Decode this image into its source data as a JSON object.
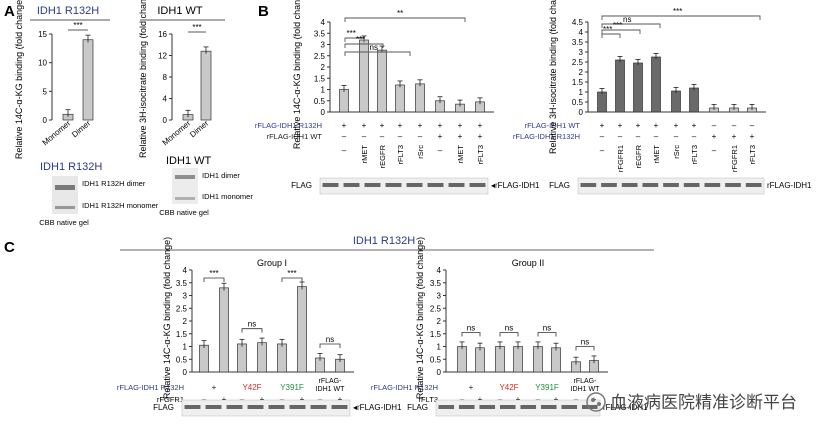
{
  "panelA": {
    "letter": "A",
    "left": {
      "title": "IDH1 R132H",
      "ylabel": "Relative 14C-α-KG binding (fold change)",
      "ticks": [
        "0",
        "5",
        "10",
        "15"
      ],
      "categories": [
        "Monomer",
        "Dimer"
      ],
      "values": [
        1.0,
        14.0
      ],
      "sig": "***",
      "gel_title": "IDH1 R132H",
      "gel_labels": [
        "IDH1 R132H dimer",
        "IDH1 R132H monomer"
      ],
      "gel_caption": "CBB native gel"
    },
    "right": {
      "title": "IDH1 WT",
      "ylabel": "Relative 3H-isocitrate binding (fold change)",
      "ticks": [
        "0",
        "4",
        "8",
        "12",
        "16"
      ],
      "categories": [
        "Monomer",
        "Dimer"
      ],
      "values": [
        1.0,
        12.8
      ],
      "sig": "***",
      "gel_title": "IDH1 WT",
      "gel_labels": [
        "IDH1 dimer",
        "IDH1 monomer"
      ],
      "gel_caption": "CBB native gel"
    }
  },
  "panelB": {
    "letter": "B",
    "left": {
      "ylabel": "Relative 14C-α-KG binding (fold change)",
      "ticks": [
        "0",
        "0.5",
        "1",
        "1.5",
        "2",
        "2.5",
        "3",
        "3.5",
        "4"
      ],
      "row1_label": "rFLAG-IDH1 R132H",
      "row2_label": "rFLAG-IDH1 WT",
      "row1_signs": [
        "+",
        "+",
        "+",
        "+",
        "+",
        "+",
        "+",
        "+"
      ],
      "row2_signs": [
        "–",
        "–",
        "–",
        "–",
        "–",
        "+",
        "+",
        "+"
      ],
      "kinases": [
        "–",
        "rMET",
        "rEGFR",
        "rFLT3",
        "rSrc",
        "–",
        "rMET",
        "rFLT3"
      ],
      "values": [
        1.0,
        3.2,
        2.75,
        1.2,
        1.25,
        0.5,
        0.35,
        0.45
      ],
      "sig": [
        "***",
        "***",
        "ns",
        "**"
      ],
      "blot_label": "FLAG",
      "blot_target": "◂rFLAG-IDH1"
    },
    "right": {
      "ylabel": "Relative 3H-isocitrate binding (fold change)",
      "ticks": [
        "0",
        "0.5",
        "1",
        "1.5",
        "2",
        "2.5",
        "3",
        "3.5",
        "4",
        "4.5"
      ],
      "row1_label": "rFLAG-IDH1 WT",
      "row2_label": "rFLAG-IDH1 R132H",
      "row1_signs": [
        "+",
        "+",
        "+",
        "+",
        "+",
        "+",
        "–",
        "–",
        "–"
      ],
      "row2_signs": [
        "–",
        "–",
        "–",
        "–",
        "–",
        "–",
        "+",
        "+",
        "+"
      ],
      "kinases": [
        "–",
        "rFGFR1",
        "rEGFR",
        "rMET",
        "rSrc",
        "rFLT3",
        "–",
        "rFGFR1",
        "rFLT3"
      ],
      "values": [
        1.0,
        2.6,
        2.45,
        2.75,
        1.05,
        1.2,
        0.2,
        0.2,
        0.2
      ],
      "sig": [
        "***",
        "***",
        "ns",
        "***"
      ],
      "blot_label": "FLAG",
      "blot_target": "rFLAG-IDH1"
    }
  },
  "panelC": {
    "letter": "C",
    "header": "IDH1 R132H",
    "group1": {
      "title": "Group I",
      "ylabel": "Relative 14C-α-KG binding (fold change)",
      "ticks": [
        "0",
        "0.5",
        "1",
        "1.5",
        "2",
        "2.5",
        "3",
        "3.5",
        "4"
      ],
      "row1_label": "rFLAG-IDH1 R132H",
      "row2_label": "rFGFR1",
      "construct_labels": [
        "+",
        "Y42F",
        "Y391F",
        "rFLAG- IDH1 WT"
      ],
      "row2_signs": [
        "–",
        "+",
        "–",
        "+",
        "–",
        "+",
        "–",
        "+"
      ],
      "values": [
        1.05,
        3.3,
        1.1,
        1.15,
        1.1,
        3.35,
        0.55,
        0.5
      ],
      "sig": [
        "***",
        "ns",
        "***",
        "ns"
      ],
      "blot_label": "FLAG",
      "blot_target": "◂rFLAG-IDH1"
    },
    "group2": {
      "title": "Group II",
      "ylabel": "Relative 14C-α-KG binding (fold change)",
      "ticks": [
        "0",
        "0.5",
        "1",
        "1.5",
        "2",
        "2.5",
        "3",
        "3.5",
        "4"
      ],
      "row1_label": "rFLAG-IDH1 R132H",
      "row2_label": "rFLT3",
      "construct_labels": [
        "+",
        "Y42F",
        "Y391F",
        "rFLAG- IDH1 WT"
      ],
      "row2_signs": [
        "–",
        "+",
        "–",
        "+",
        "–",
        "+",
        "–",
        "+"
      ],
      "values": [
        1.0,
        0.95,
        1.0,
        1.0,
        1.0,
        0.95,
        0.4,
        0.45
      ],
      "sig": [
        "ns",
        "ns",
        "ns",
        "ns"
      ],
      "blot_label": "FLAG",
      "blot_target": "rFLAG-IDH1"
    }
  },
  "watermark": "血液病医院精准诊断平台",
  "colors": {
    "navy": "#2a3a8c",
    "red": "#d42a2a",
    "green": "#1f8f3a",
    "bar_light": "#c9c9c9",
    "bar_dark": "#6a6a6a"
  }
}
